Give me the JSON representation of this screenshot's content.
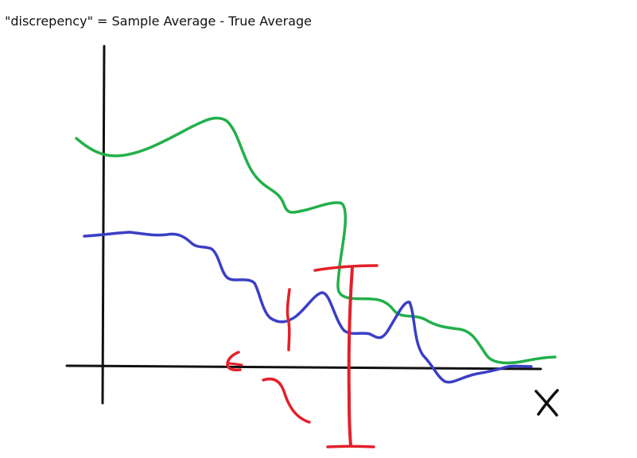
{
  "caption": "\"discrepency\" = Sample Average - True Average",
  "x_axis_label": "X",
  "colors": {
    "axes": "#111111",
    "green_curve": "#22b04a",
    "blue_curve": "#3b3fc4",
    "annotation_red": "#e3202a"
  }
}
